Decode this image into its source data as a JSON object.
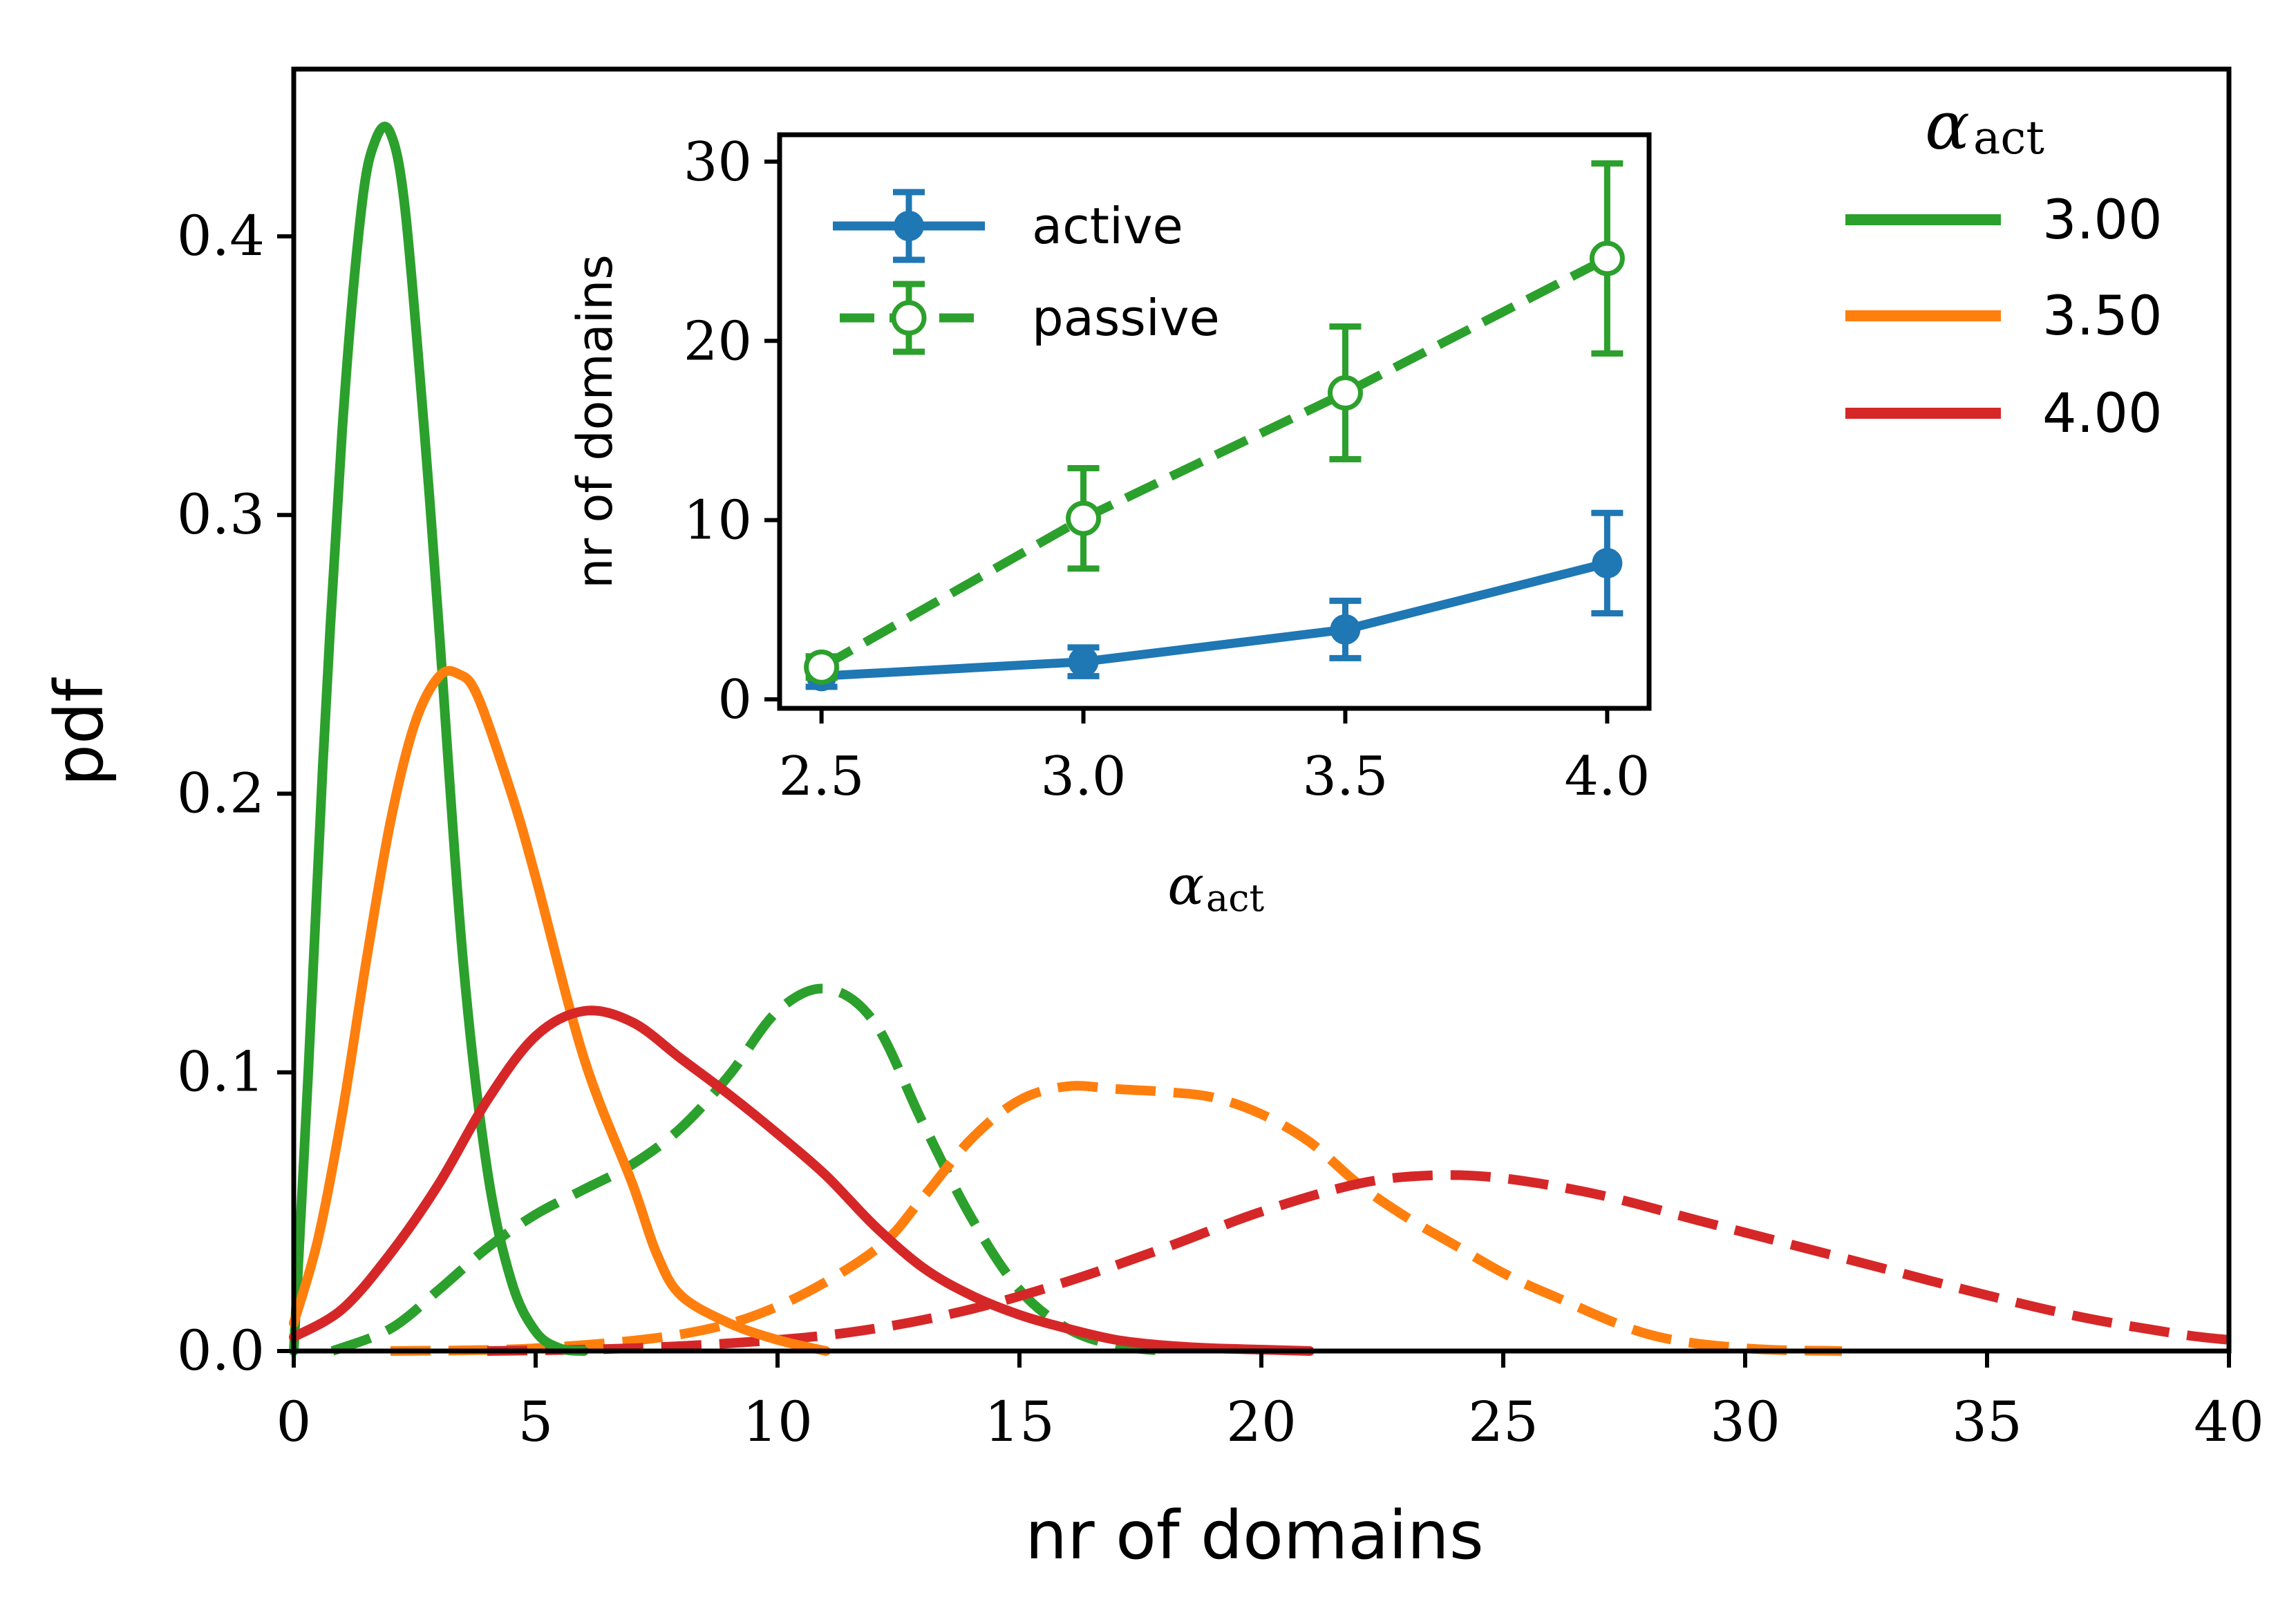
{
  "chart_data": [
    {
      "type": "line",
      "title": "",
      "xlabel": "nr of domains",
      "ylabel": "pdf",
      "xlim": [
        0,
        40
      ],
      "ylim": [
        0,
        0.46
      ],
      "x_ticks": [
        0,
        5,
        10,
        15,
        20,
        25,
        30,
        35,
        40
      ],
      "x_tick_labels": [
        "0",
        "5",
        "10",
        "15",
        "20",
        "25",
        "30",
        "35",
        "40"
      ],
      "y_ticks": [
        0.0,
        0.1,
        0.2,
        0.3,
        0.4
      ],
      "y_tick_labels": [
        "0.0",
        "0.1",
        "0.2",
        "0.3",
        "0.4"
      ],
      "grid": false,
      "legend": {
        "title_main": "α",
        "title_sub": "act",
        "placement": "top-right",
        "entries": [
          {
            "label": "3.00",
            "color": "#2ca02c"
          },
          {
            "label": "3.50",
            "color": "#ff7f0e"
          },
          {
            "label": "4.00",
            "color": "#d62728"
          }
        ]
      },
      "series": [
        {
          "name": "active 3.00",
          "style": "solid",
          "color": "#2ca02c",
          "xmax": 6,
          "x": [
            0,
            0.3,
            0.6,
            1.0,
            1.4,
            1.7,
            2.0,
            2.3,
            2.7,
            3.0,
            3.5,
            4.0,
            4.5,
            5.0,
            5.5,
            6.0
          ],
          "y": [
            0.0,
            0.1,
            0.21,
            0.33,
            0.41,
            0.435,
            0.437,
            0.41,
            0.33,
            0.26,
            0.14,
            0.065,
            0.025,
            0.007,
            0.001,
            0.0
          ]
        },
        {
          "name": "active 3.50",
          "style": "solid",
          "color": "#ff7f0e",
          "xmax": 11,
          "x": [
            0,
            0.5,
            1.0,
            1.5,
            2.0,
            2.5,
            3.0,
            3.4,
            3.8,
            4.5,
            5.0,
            6.0,
            7.0,
            7.5,
            8.0,
            9.0,
            10.0,
            11.0
          ],
          "y": [
            0.01,
            0.04,
            0.085,
            0.14,
            0.19,
            0.225,
            0.242,
            0.243,
            0.235,
            0.2,
            0.17,
            0.105,
            0.06,
            0.035,
            0.02,
            0.01,
            0.004,
            0.0
          ]
        },
        {
          "name": "active 4.00",
          "style": "solid",
          "color": "#d62728",
          "xmax": 21,
          "x": [
            0,
            1,
            2,
            3,
            4,
            5,
            6,
            7,
            8,
            9,
            10,
            11,
            12,
            13,
            14,
            15,
            16,
            17,
            18,
            19,
            20,
            21
          ],
          "y": [
            0.005,
            0.015,
            0.035,
            0.06,
            0.09,
            0.113,
            0.122,
            0.118,
            0.105,
            0.092,
            0.078,
            0.063,
            0.045,
            0.03,
            0.02,
            0.013,
            0.008,
            0.004,
            0.002,
            0.001,
            0.0005,
            0.0
          ]
        },
        {
          "name": "passive 3.00",
          "style": "dashed",
          "color": "#2ca02c",
          "xmax": 18,
          "x": [
            0.8,
            2,
            3,
            4,
            5,
            6,
            7,
            8,
            9,
            10,
            11,
            12,
            13,
            14,
            15,
            16,
            17,
            18
          ],
          "y": [
            0.0,
            0.008,
            0.022,
            0.037,
            0.049,
            0.058,
            0.067,
            0.08,
            0.099,
            0.122,
            0.13,
            0.118,
            0.082,
            0.048,
            0.022,
            0.008,
            0.002,
            0.0
          ]
        },
        {
          "name": "passive 3.50",
          "style": "dashed",
          "color": "#ff7f0e",
          "xmax": 32,
          "x": [
            2,
            5,
            8,
            10,
            12,
            13,
            14,
            15,
            16,
            17,
            18,
            19,
            20,
            21,
            22,
            23,
            24,
            25,
            26,
            28,
            30,
            32
          ],
          "y": [
            0.0,
            0.001,
            0.006,
            0.016,
            0.036,
            0.055,
            0.076,
            0.09,
            0.095,
            0.094,
            0.093,
            0.091,
            0.085,
            0.075,
            0.06,
            0.048,
            0.038,
            0.028,
            0.02,
            0.006,
            0.001,
            0.0
          ]
        },
        {
          "name": "passive 4.00",
          "style": "dashed",
          "color": "#d62728",
          "xmax": 40,
          "x": [
            4,
            7,
            10,
            12,
            14,
            16,
            18,
            20,
            22,
            23.5,
            25,
            27,
            29,
            31,
            33,
            35,
            37,
            39,
            40
          ],
          "y": [
            0.0,
            0.001,
            0.004,
            0.008,
            0.015,
            0.025,
            0.037,
            0.05,
            0.06,
            0.063,
            0.062,
            0.056,
            0.047,
            0.038,
            0.029,
            0.02,
            0.012,
            0.006,
            0.004
          ]
        }
      ]
    },
    {
      "type": "line",
      "title": "",
      "xlabel_main": "α",
      "xlabel_sub": "act",
      "ylabel": "nr of domains",
      "xlim": [
        2.42,
        4.08
      ],
      "ylim": [
        -0.5,
        31.5
      ],
      "x_ticks": [
        2.5,
        3.0,
        3.5,
        4.0
      ],
      "x_tick_labels": [
        "2.5",
        "3.0",
        "3.5",
        "4.0"
      ],
      "y_ticks": [
        0,
        10,
        20,
        30
      ],
      "y_tick_labels": [
        "0",
        "10",
        "20",
        "30"
      ],
      "grid": false,
      "legend": {
        "placement": "top-left",
        "entries": [
          {
            "label": "active",
            "color": "#1f77b4",
            "style": "solid"
          },
          {
            "label": "passive",
            "color": "#2ca02c",
            "style": "dashed"
          }
        ]
      },
      "series": [
        {
          "name": "active",
          "style": "solid",
          "color": "#1f77b4",
          "marker": "filled-circle",
          "x": [
            2.5,
            3.0,
            3.5,
            4.0
          ],
          "y": [
            1.3,
            2.1,
            3.9,
            7.6
          ],
          "yerr": [
            0.6,
            0.8,
            1.6,
            2.8
          ]
        },
        {
          "name": "passive",
          "style": "dashed",
          "color": "#2ca02c",
          "marker": "open-circle",
          "x": [
            2.5,
            3.0,
            3.5,
            4.0
          ],
          "y": [
            1.8,
            10.1,
            17.1,
            24.6
          ],
          "yerr": [
            0.6,
            2.8,
            3.7,
            5.3
          ]
        }
      ]
    }
  ]
}
